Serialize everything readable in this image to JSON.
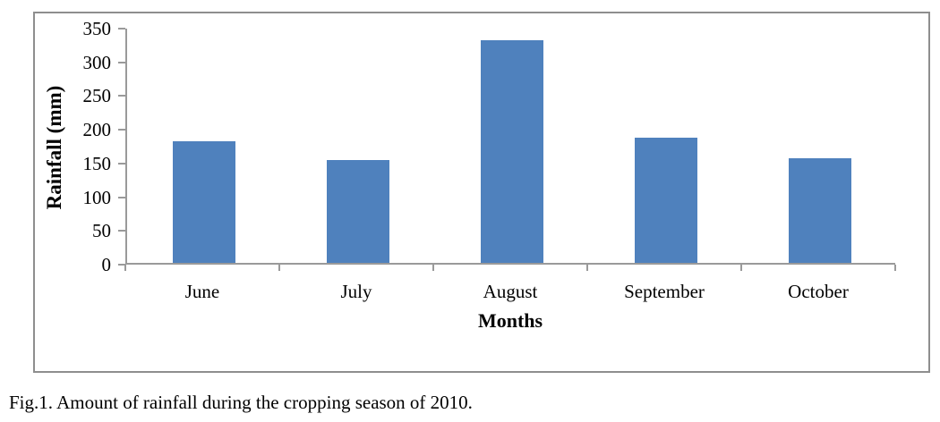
{
  "figure": {
    "caption": "Fig.1. Amount of rainfall during the cropping season of 2010."
  },
  "chart_data": {
    "type": "bar",
    "categories": [
      "June",
      "July",
      "August",
      "September",
      "October"
    ],
    "values": [
      180,
      152,
      330,
      185,
      155
    ],
    "title": "",
    "xlabel": "Months",
    "ylabel": "Rainfall (mm)",
    "ylim": [
      0,
      350
    ],
    "yticks": [
      0,
      50,
      100,
      150,
      200,
      250,
      300,
      350
    ],
    "grid": false,
    "legend": false,
    "colors": {
      "bar": "#4F81BD",
      "axis": "#9a9a9a",
      "frame_border": "#8e8e8e",
      "text": "#000000"
    }
  }
}
